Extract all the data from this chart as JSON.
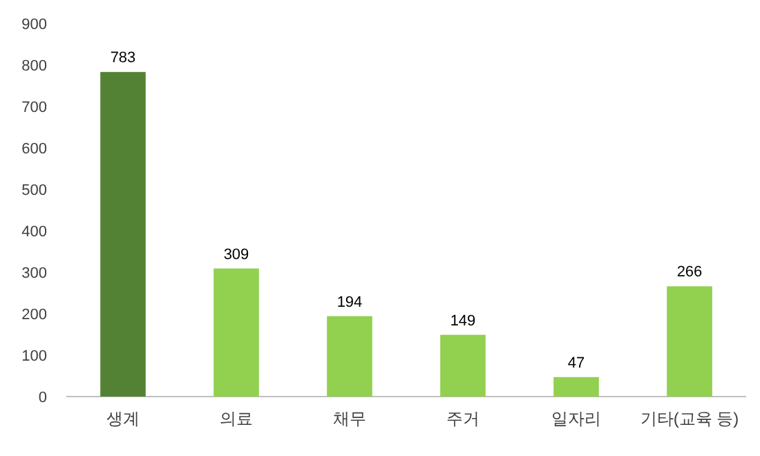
{
  "chart_data": {
    "type": "bar",
    "categories": [
      "생계",
      "의료",
      "채무",
      "주거",
      "일자리",
      "기타(교육 등)"
    ],
    "values": [
      783,
      309,
      194,
      149,
      47,
      266
    ],
    "colors": [
      "#548235",
      "#92d050",
      "#92d050",
      "#92d050",
      "#92d050",
      "#92d050"
    ],
    "ylim": [
      0,
      900
    ],
    "yticks": [
      0,
      100,
      200,
      300,
      400,
      500,
      600,
      700,
      800,
      900
    ],
    "data_labels": true,
    "grid": false
  }
}
